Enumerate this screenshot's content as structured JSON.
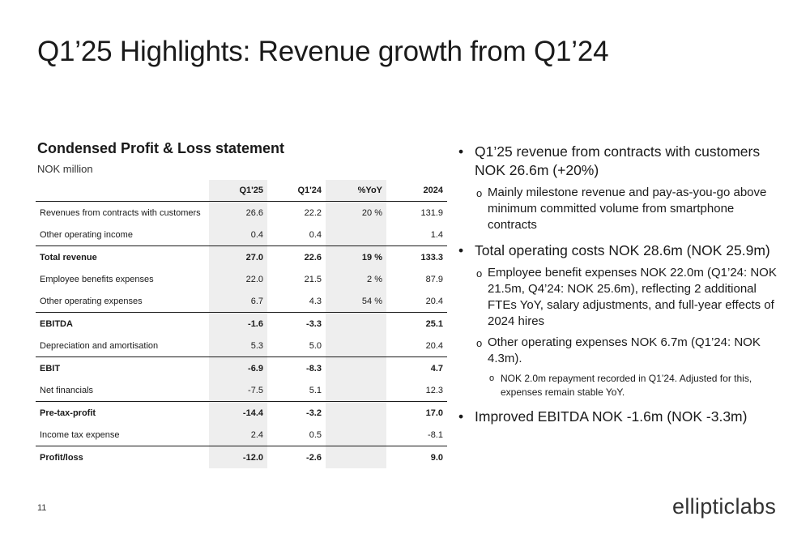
{
  "slide": {
    "title": "Q1’25 Highlights: Revenue growth from Q1’24",
    "page_number": "11"
  },
  "pl": {
    "title": "Condensed Profit & Loss statement",
    "unit": "NOK million",
    "headers": [
      "",
      "Q1'25",
      "Q1'24",
      "%YoY",
      "2024"
    ],
    "rows": [
      {
        "label": "Revenues from contracts with customers",
        "q1_25": "26.6",
        "q1_24": "22.2",
        "yoy": "20 %",
        "fy_2024": "131.9"
      },
      {
        "label": "Other operating income",
        "q1_25": "0.4",
        "q1_24": "0.4",
        "yoy": "",
        "fy_2024": "1.4"
      },
      {
        "label": "Total revenue",
        "q1_25": "27.0",
        "q1_24": "22.6",
        "yoy": "19 %",
        "fy_2024": "133.3"
      },
      {
        "label": "Employee benefits expenses",
        "q1_25": "22.0",
        "q1_24": "21.5",
        "yoy": "2 %",
        "fy_2024": "87.9"
      },
      {
        "label": "Other operating expenses",
        "q1_25": "6.7",
        "q1_24": "4.3",
        "yoy": "54 %",
        "fy_2024": "20.4"
      },
      {
        "label": "EBITDA",
        "q1_25": "-1.6",
        "q1_24": "-3.3",
        "yoy": "",
        "fy_2024": "25.1"
      },
      {
        "label": "Depreciation and amortisation",
        "q1_25": "5.3",
        "q1_24": "5.0",
        "yoy": "",
        "fy_2024": "20.4"
      },
      {
        "label": "EBIT",
        "q1_25": "-6.9",
        "q1_24": "-8.3",
        "yoy": "",
        "fy_2024": "4.7"
      },
      {
        "label": "Net financials",
        "q1_25": "-7.5",
        "q1_24": "5.1",
        "yoy": "",
        "fy_2024": "12.3"
      },
      {
        "label": "Pre-tax-profit",
        "q1_25": "-14.4",
        "q1_24": "-3.2",
        "yoy": "",
        "fy_2024": "17.0"
      },
      {
        "label": "Income tax expense",
        "q1_25": "2.4",
        "q1_24": "0.5",
        "yoy": "",
        "fy_2024": "-8.1"
      },
      {
        "label": "Profit/loss",
        "q1_25": "-12.0",
        "q1_24": "-2.6",
        "yoy": "",
        "fy_2024": "9.0"
      }
    ]
  },
  "bullets": {
    "b1": "Q1’25 revenue from contracts with customers NOK 26.6m (+20%)",
    "b1_sub1": "Mainly milestone revenue and pay-as-you-go above minimum committed volume from smartphone contracts",
    "b2": "Total operating costs NOK 28.6m (NOK 25.9m)",
    "b2_sub1": "Employee benefit expenses NOK 22.0m (Q1’24: NOK 21.5m, Q4’24: NOK 25.6m), reflecting 2 additional FTEs YoY, salary adjustments, and full-year effects of 2024 hires",
    "b2_sub2": "Other operating expenses NOK 6.7m (Q1’24: NOK 4.3m).",
    "b2_sub2_sub1": "NOK 2.0m repayment recorded in Q1’24. Adjusted for this, expenses remain stable YoY.",
    "b3": "Improved EBITDA NOK -1.6m (NOK -3.3m)",
    "bullet_glyph": "•",
    "sub_glyph": "o"
  },
  "logo": {
    "part1": "elliptic",
    "part2": "labs"
  }
}
